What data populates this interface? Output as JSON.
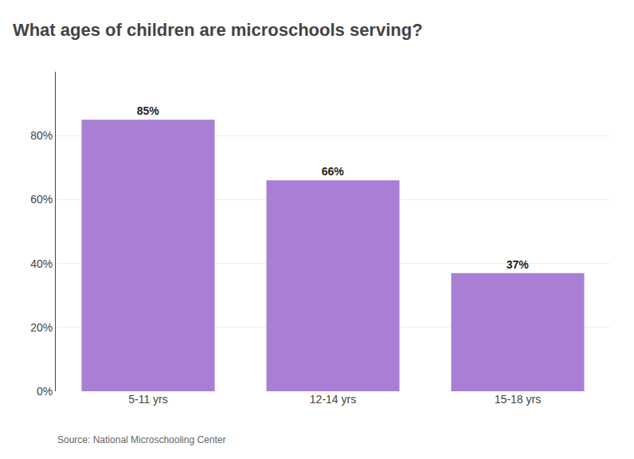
{
  "chart_data": {
    "type": "bar",
    "title": "What ages of children are microschools serving?",
    "categories": [
      "5-11 yrs",
      "12-14 yrs",
      "15-18 yrs"
    ],
    "values": [
      85,
      66,
      37
    ],
    "value_labels": [
      "85%",
      "66%",
      "37%"
    ],
    "data_labels": true,
    "color": "#a87fd4",
    "ylim": [
      0,
      100
    ],
    "yticks": [
      {
        "value": 0,
        "label": "0%"
      },
      {
        "value": 20,
        "label": "20%"
      },
      {
        "value": 40,
        "label": "40%"
      },
      {
        "value": 60,
        "label": "60%"
      },
      {
        "value": 80,
        "label": "80%"
      }
    ],
    "grid": true,
    "annotations": [
      "Source: National Microschooling Center"
    ]
  }
}
